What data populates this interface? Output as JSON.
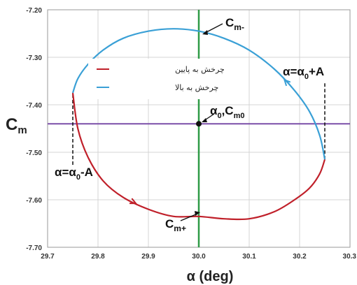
{
  "chart_data": {
    "type": "line",
    "xlabel": "α (deg)",
    "ylabel": "Cm",
    "xlim": [
      29.7,
      30.3
    ],
    "ylim": [
      -7.7,
      -7.2
    ],
    "x_ticks": [
      "29.7",
      "29.8",
      "29.9",
      "30.0",
      "30.1",
      "30.2",
      "30.3"
    ],
    "y_ticks": [
      "-7.20",
      "-7.30",
      "-7.40",
      "-7.50",
      "-7.60",
      "-7.70"
    ],
    "grid": true,
    "legend_position": "top-left",
    "colors": {
      "down": "#c0202a",
      "up": "#3aa0d6",
      "horizontal_line": "#7b4fa8",
      "vertical_line": "#2e9b46"
    },
    "series": [
      {
        "name": "چرخش به پایین",
        "color": "#c0202a",
        "x": [
          29.75,
          29.76,
          29.78,
          29.81,
          29.85,
          29.9,
          29.95,
          30.0,
          30.05,
          30.1,
          30.15,
          30.19,
          30.22,
          30.24,
          30.25
        ],
        "y": [
          -7.375,
          -7.45,
          -7.51,
          -7.56,
          -7.595,
          -7.62,
          -7.635,
          -7.635,
          -7.64,
          -7.64,
          -7.625,
          -7.6,
          -7.575,
          -7.545,
          -7.515
        ]
      },
      {
        "name": "چرخش به بالا",
        "color": "#3aa0d6",
        "x": [
          30.25,
          30.24,
          30.22,
          30.19,
          30.15,
          30.1,
          30.05,
          30.0,
          29.95,
          29.9,
          29.85,
          29.81,
          29.78,
          29.76,
          29.75
        ],
        "y": [
          -7.515,
          -7.465,
          -7.415,
          -7.37,
          -7.325,
          -7.285,
          -7.26,
          -7.245,
          -7.24,
          -7.245,
          -7.26,
          -7.285,
          -7.315,
          -7.345,
          -7.375
        ]
      }
    ],
    "reference_lines": [
      {
        "orientation": "horizontal",
        "value": -7.44,
        "color": "#7b4fa8"
      },
      {
        "orientation": "vertical",
        "value": 30.0,
        "color": "#2e9b46"
      }
    ],
    "points": [
      {
        "x": 30.0,
        "y": -7.44
      }
    ],
    "annotations": {
      "cm_minus": "Cm-",
      "cm_plus": "Cm+",
      "center": "α0,Cm0",
      "alpha_plus": "α=α0+A",
      "alpha_minus": "α=α0-A"
    }
  }
}
